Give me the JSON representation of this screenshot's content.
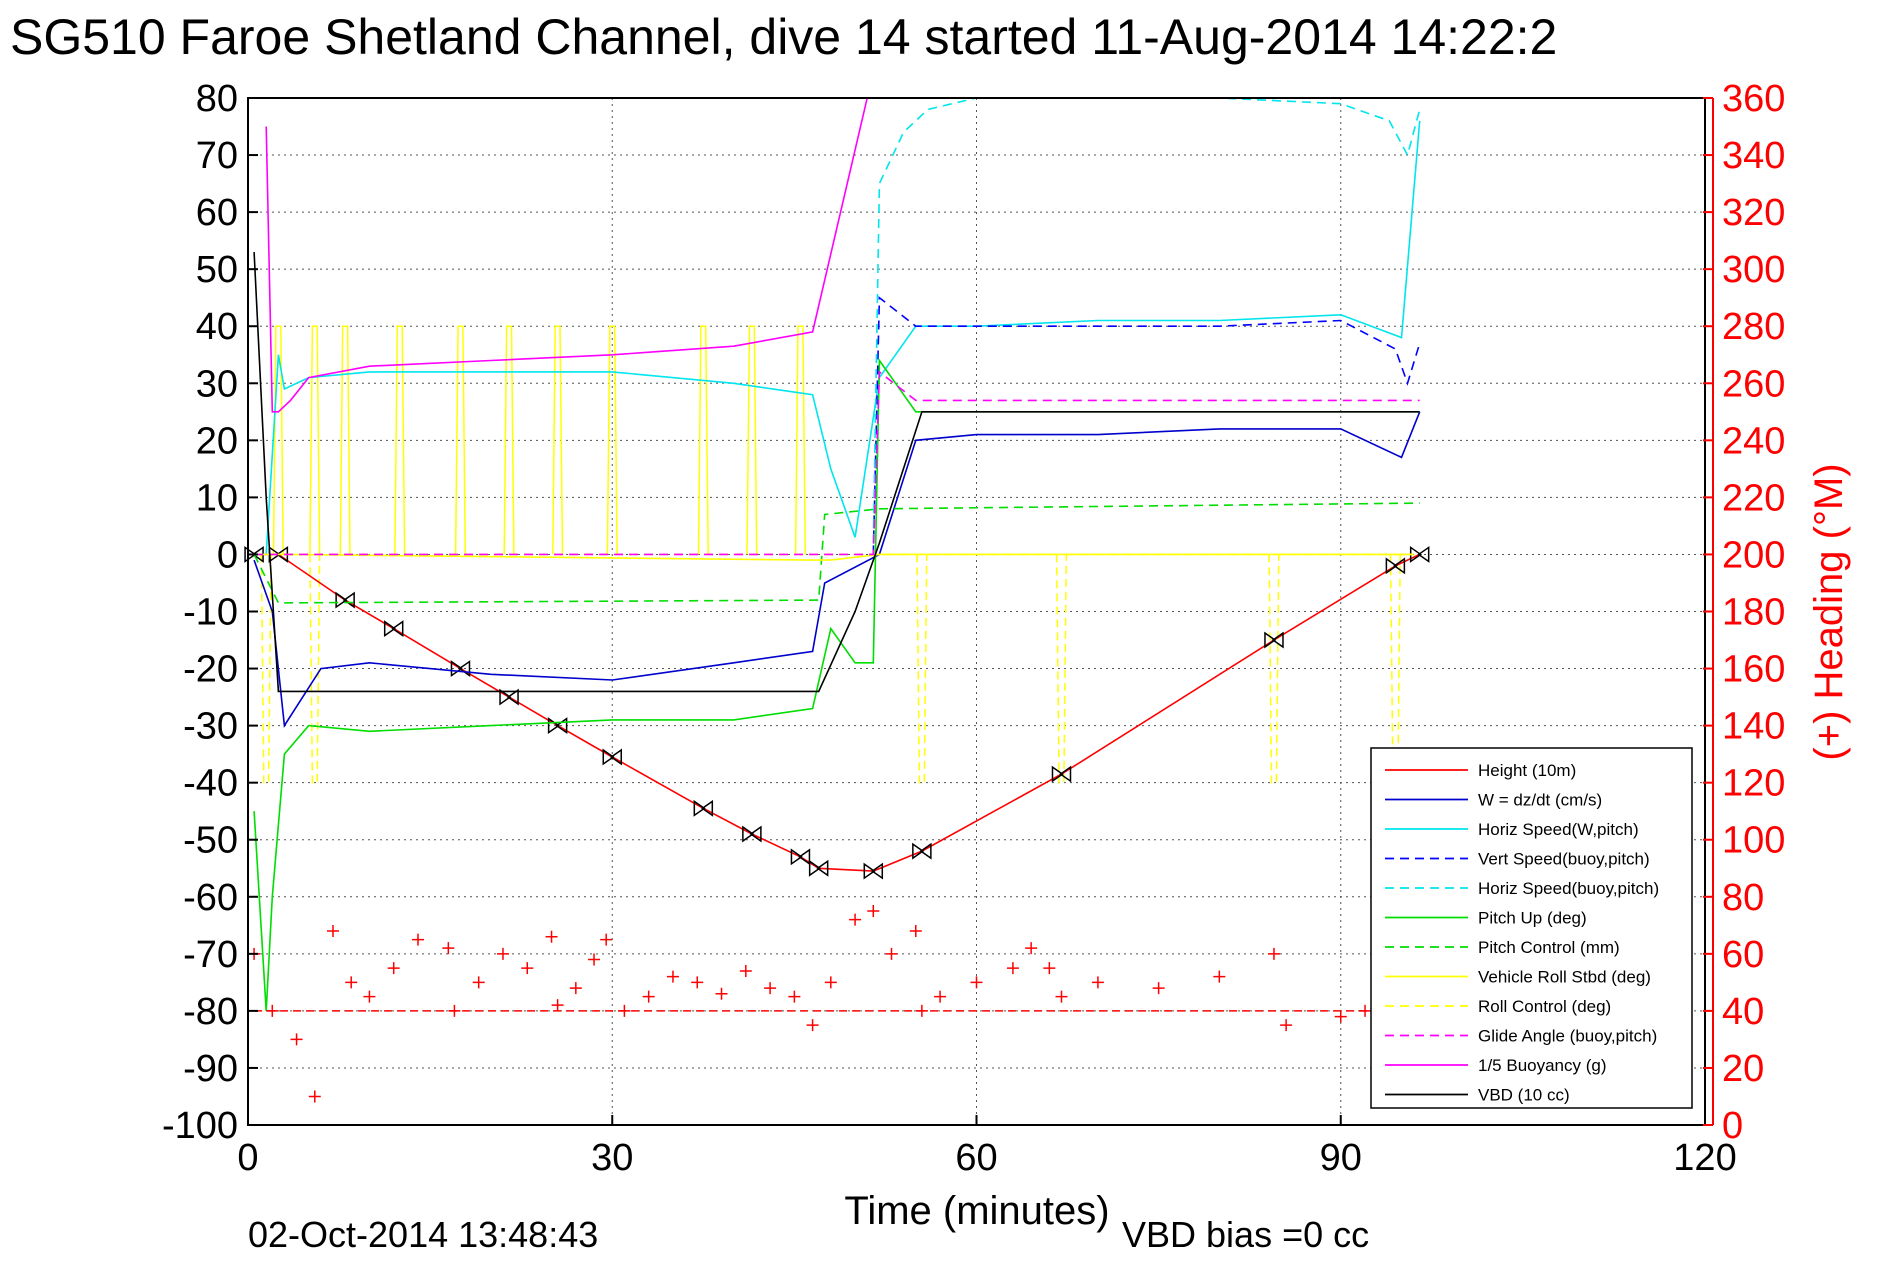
{
  "chart_data": {
    "type": "line",
    "title": "SG510 Faroe Shetland Channel, dive 14 started 11-Aug-2014 14:22:2",
    "xlabel": "Time (minutes)",
    "ylabel_right": "(+) Heading (°M)",
    "footer_left": "02-Oct-2014 13:48:43",
    "footer_right": "VBD bias =0 cc",
    "xlim": [
      0,
      120
    ],
    "ylim_left": [
      -100,
      80
    ],
    "ylim_right": [
      0,
      360
    ],
    "x_ticks": [
      "0",
      "30",
      "60",
      "90",
      "120"
    ],
    "y_ticks_left": [
      "80",
      "70",
      "60",
      "50",
      "40",
      "30",
      "20",
      "10",
      "0",
      "-10",
      "-20",
      "-30",
      "-40",
      "-50",
      "-60",
      "-70",
      "-80",
      "-90",
      "-100"
    ],
    "y_ticks_right": [
      "360",
      "340",
      "320",
      "300",
      "280",
      "260",
      "240",
      "220",
      "200",
      "180",
      "160",
      "140",
      "120",
      "100",
      "80",
      "60",
      "40",
      "20",
      "0"
    ],
    "grid": true,
    "legend_position": "bottom-right",
    "colors": {
      "height": "#ff0000",
      "w": "#0000cc",
      "horiz_speed": "#00e5ee",
      "pitch": "#00dd00",
      "roll": "#ffff00",
      "glide": "#ff00ff",
      "buoyancy": "#ff00ff",
      "vbd": "#000000",
      "heading": "#ff0000"
    },
    "series": [
      {
        "name": "Height (10m)",
        "axis": "left",
        "style": "solid",
        "color": "#ff0000",
        "x": [
          0.5,
          2.5,
          8,
          12,
          17.5,
          21.5,
          25.5,
          30,
          37.5,
          41.5,
          45.5,
          47,
          51.5,
          55.5,
          67,
          84.5,
          94.5,
          96.5
        ],
        "y": [
          0,
          0,
          -8,
          -13,
          -20,
          -25,
          -30,
          -35.5,
          -44.5,
          -49,
          -53,
          -55,
          -55.5,
          -52,
          -38.5,
          -15,
          -2,
          0
        ]
      },
      {
        "name": "W = dz/dt (cm/s)",
        "axis": "left",
        "style": "solid",
        "color": "#0000cc",
        "x": [
          0.5,
          2,
          3,
          6,
          10,
          20,
          30,
          40,
          46.5,
          47.5,
          52,
          55,
          60,
          70,
          80,
          90,
          95,
          96.5
        ],
        "y": [
          -1,
          -10,
          -30,
          -20,
          -19,
          -21,
          -22,
          -19,
          -17,
          -5,
          0,
          20,
          21,
          21,
          22,
          22,
          17,
          25
        ]
      },
      {
        "name": "Horiz Speed(W,pitch)",
        "axis": "left",
        "style": "solid",
        "color": "#00e5ee",
        "x": [
          1.5,
          2.5,
          3,
          5,
          10,
          20,
          30,
          40,
          46.5,
          48,
          50,
          52,
          55,
          60,
          70,
          80,
          90,
          95,
          96.5
        ],
        "y": [
          0,
          35,
          29,
          31,
          32,
          32,
          32,
          30,
          28,
          15,
          3,
          31,
          40,
          40,
          41,
          41,
          42,
          38,
          76
        ]
      },
      {
        "name": "Vert Speed(buoy,pitch)",
        "axis": "left",
        "style": "dashed",
        "color": "#0000ff",
        "x": [
          51.5,
          52,
          55,
          60,
          70,
          80,
          90,
          94.5,
          95.5,
          96.5
        ],
        "y": [
          0,
          45,
          40,
          40,
          40,
          40,
          41,
          36,
          30,
          37
        ]
      },
      {
        "name": "Horiz Speed(buoy,pitch)",
        "axis": "left",
        "style": "dashed",
        "color": "#00e5ee",
        "x": [
          51.5,
          52,
          54,
          56,
          60,
          70,
          80,
          90,
          94,
          95.5,
          96.5
        ],
        "y": [
          2,
          65,
          74,
          78,
          80,
          80,
          80,
          79,
          76,
          70,
          78
        ]
      },
      {
        "name": "Pitch Up (deg)",
        "axis": "left",
        "style": "solid",
        "color": "#00dd00",
        "x": [
          0.5,
          1.5,
          2,
          3,
          5,
          10,
          20,
          30,
          40,
          46.5,
          48,
          50,
          51.5,
          52,
          55,
          60,
          70,
          80,
          90,
          96.5
        ],
        "y": [
          -45,
          -80,
          -60,
          -35,
          -30,
          -31,
          -30,
          -29,
          -29,
          -27,
          -13,
          -19,
          -19,
          34,
          25,
          25,
          25,
          25,
          25,
          25
        ]
      },
      {
        "name": "Pitch Control (mm)",
        "axis": "left",
        "style": "dashed",
        "color": "#00dd00",
        "x": [
          0.5,
          2.5,
          47,
          47.5,
          52,
          96.5
        ],
        "y": [
          0,
          -8.5,
          -8,
          7,
          8,
          9
        ]
      },
      {
        "name": "Vehicle Roll Stbd (deg)",
        "axis": "left",
        "style": "solid",
        "color": "#ffff00",
        "x": [
          0.5,
          3,
          46.5,
          48,
          52,
          96
        ],
        "y": [
          0,
          0,
          -1,
          -1,
          0,
          0
        ]
      },
      {
        "name": "Roll Control (deg)",
        "axis": "left",
        "style": "dashed",
        "color": "#ffff00",
        "x": [
          0.5,
          96
        ],
        "y": [
          0,
          0
        ]
      },
      {
        "name": "Glide Angle (buoy,pitch)",
        "axis": "left",
        "style": "dashed",
        "color": "#ff00ff",
        "x": [
          0.5,
          51.5,
          52,
          55,
          60,
          80,
          96.5
        ],
        "y": [
          0,
          0,
          32,
          27,
          27,
          27,
          27
        ]
      },
      {
        "name": "1/5 Buoyancy (g)",
        "axis": "left",
        "style": "solid",
        "color": "#ff00ff",
        "x": [
          1.5,
          2,
          2.5,
          3.5,
          5,
          10,
          20,
          30,
          40,
          46.5,
          51
        ],
        "y": [
          75,
          25,
          25,
          27,
          31,
          33,
          34,
          35,
          36.5,
          39,
          80
        ]
      },
      {
        "name": "VBD (10 cc)",
        "axis": "left",
        "style": "solid",
        "color": "#000000",
        "x": [
          0.5,
          1.5,
          2.5,
          10,
          20,
          30,
          40,
          47,
          50,
          52,
          55.5,
          60,
          70,
          80,
          90,
          96.5
        ],
        "y": [
          53,
          10,
          -24,
          -24,
          -24,
          -24,
          -24,
          -24,
          -10,
          2,
          25,
          25,
          25,
          25,
          25,
          25
        ]
      },
      {
        "name": "Heading",
        "axis": "right",
        "style": "markers",
        "color": "#ff0000",
        "x": [
          0.5,
          2,
          4,
          5.5,
          7,
          8.5,
          10,
          12,
          14,
          16.5,
          17,
          19,
          21,
          23,
          25,
          25.5,
          27,
          28.5,
          29.5,
          31,
          33,
          35,
          37,
          39,
          41,
          43,
          45,
          46.5,
          48,
          50,
          51.5,
          53,
          55,
          55.5,
          57,
          60,
          63,
          64.5,
          66,
          67,
          70,
          75,
          80,
          84.5,
          85.5,
          90,
          92,
          94
        ],
        "y": [
          60,
          40,
          30,
          10,
          68,
          50,
          45,
          55,
          65,
          62,
          40,
          50,
          60,
          55,
          66,
          42,
          48,
          58,
          65,
          40,
          45,
          52,
          50,
          46,
          54,
          48,
          45,
          35,
          50,
          72,
          75,
          60,
          68,
          40,
          45,
          50,
          55,
          62,
          55,
          45,
          50,
          48,
          52,
          60,
          35,
          38,
          40,
          32
        ]
      }
    ],
    "reference_lines": [
      {
        "axis": "right",
        "y": 40,
        "style": "dashed",
        "color": "#ff0000"
      }
    ],
    "spikes": {
      "roll_stbd_up": [
        2.5,
        5.5,
        8,
        12.5,
        17.5,
        21.5,
        25.5,
        30,
        37.5,
        41.5,
        45.5
      ],
      "roll_control_down": [
        1.5,
        5.5,
        55.5,
        67,
        84.5,
        94.5
      ]
    }
  }
}
